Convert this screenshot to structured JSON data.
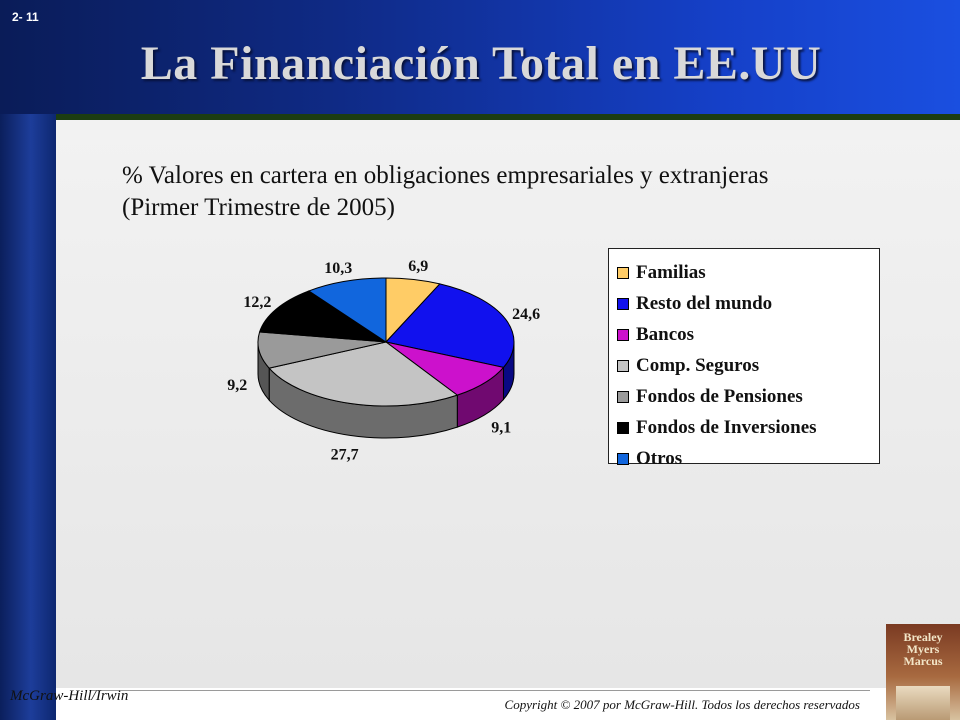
{
  "slide": {
    "number": "2- 11",
    "title": "La Financiación Total en EE.UU",
    "subtitle": "% Valores en cartera en obligaciones empresariales y extranjeras (Pirmer Trimestre de 2005)"
  },
  "chart_data": {
    "type": "pie",
    "title": "",
    "subtitle": "% Valores en cartera en obligaciones empresariales y extranjeras (Pirmer Trimestre de 2005)",
    "categories": [
      "Familias",
      "Resto del mundo",
      "Bancos",
      "Comp. Seguros",
      "Fondos de Pensiones",
      "Fondos de Inversiones",
      "Otros"
    ],
    "values": [
      6.9,
      24.6,
      9.1,
      27.7,
      9.2,
      12.2,
      10.3
    ],
    "data_labels": [
      "6,9",
      "24,6",
      "9,1",
      "27,7",
      "9,2",
      "12,2",
      "10,3"
    ],
    "colors": [
      "#FFCC66",
      "#1111EE",
      "#CC11CC",
      "#C4C4C4",
      "#9A9A9A",
      "#000000",
      "#1166DD"
    ],
    "legend": {
      "placement": "right",
      "entries": [
        "Familias",
        "Resto del mundo",
        "Bancos",
        "Comp. Seguros",
        "Fondos de Pensiones",
        "Fondos de Inversiones",
        "Otros"
      ]
    },
    "style": "3d-pie"
  },
  "footer": {
    "publisher": "McGraw-Hill/Irwin",
    "copyright": "Copyright © 2007 por McGraw-Hill. Todos los derechos reservados"
  },
  "book": {
    "authors": [
      "Brealey",
      "Myers",
      "Marcus"
    ]
  }
}
